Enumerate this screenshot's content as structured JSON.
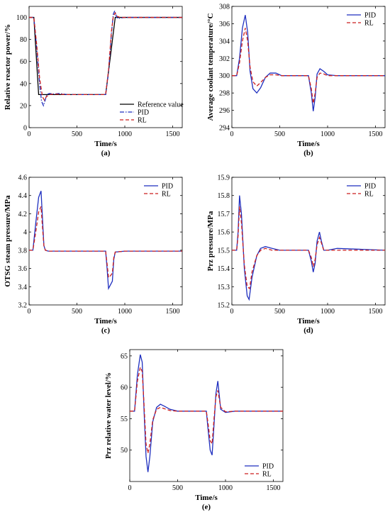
{
  "chart_data": [
    {
      "id": "a",
      "type": "line",
      "panel_label": "(a)",
      "xlabel": "Time/s",
      "ylabel": "Relative reactor power/%",
      "xlim": [
        0,
        1600
      ],
      "ylim": [
        0,
        110
      ],
      "xticks": [
        0,
        500,
        1000,
        1500
      ],
      "yticks": [
        0,
        20,
        40,
        60,
        80,
        100
      ],
      "legend": "bottom-right",
      "series": [
        {
          "name": "Reference value",
          "color": "#000000",
          "dash": "solid",
          "x": [
            0,
            50,
            100,
            800,
            850,
            900,
            1600
          ],
          "y": [
            100,
            100,
            30,
            30,
            65,
            100,
            100
          ]
        },
        {
          "name": "PID",
          "color": "#1f2fbf",
          "dash": "dashdot",
          "x": [
            0,
            50,
            80,
            110,
            130,
            150,
            165,
            185,
            210,
            260,
            320,
            400,
            800,
            830,
            860,
            880,
            895,
            905,
            915,
            930,
            960,
            1000,
            1600
          ],
          "y": [
            100,
            100,
            72,
            40,
            24,
            20,
            24,
            30,
            31,
            30.5,
            31,
            30,
            30,
            50,
            85,
            103,
            106,
            103,
            100,
            99,
            99.5,
            100,
            100
          ]
        },
        {
          "name": "RL",
          "color": "#cc1f1f",
          "dash": "dashed",
          "x": [
            0,
            50,
            80,
            110,
            140,
            160,
            180,
            210,
            260,
            400,
            800,
            830,
            860,
            880,
            900,
            920,
            950,
            1000,
            1600
          ],
          "y": [
            100,
            100,
            75,
            45,
            28,
            25,
            28,
            30,
            30.5,
            30,
            30,
            52,
            87,
            101,
            104,
            101,
            100,
            100,
            100
          ]
        }
      ]
    },
    {
      "id": "b",
      "type": "line",
      "panel_label": "(b)",
      "xlabel": "Time/s",
      "ylabel": "Average coolant temperature/°C",
      "xlim": [
        0,
        1600
      ],
      "ylim": [
        294,
        308
      ],
      "xticks": [
        0,
        500,
        1000,
        1500
      ],
      "yticks": [
        294,
        296,
        298,
        300,
        302,
        304,
        306,
        308
      ],
      "legend": "top-right",
      "series": [
        {
          "name": "PID",
          "color": "#1f2fbf",
          "dash": "solid",
          "x": [
            0,
            50,
            80,
            110,
            140,
            165,
            190,
            220,
            260,
            300,
            350,
            400,
            460,
            520,
            600,
            800,
            830,
            850,
            870,
            890,
            920,
            960,
            1000,
            1100,
            1600
          ],
          "y": [
            300,
            300,
            302,
            305.5,
            307,
            305,
            300.5,
            298.5,
            298,
            298.6,
            299.8,
            300.3,
            300.3,
            300,
            300,
            300,
            298,
            295.9,
            297.5,
            300.2,
            300.8,
            300.5,
            300.1,
            300,
            300
          ]
        },
        {
          "name": "RL",
          "color": "#cc1f1f",
          "dash": "dashed",
          "x": [
            0,
            50,
            80,
            110,
            140,
            165,
            190,
            220,
            260,
            300,
            350,
            400,
            460,
            520,
            600,
            800,
            830,
            850,
            870,
            890,
            920,
            960,
            1000,
            1100,
            1600
          ],
          "y": [
            300,
            300,
            301.5,
            304,
            305.5,
            304,
            301,
            299.3,
            298.8,
            299.2,
            299.8,
            300.1,
            300.1,
            300,
            300,
            300,
            298.5,
            296.8,
            298,
            299.8,
            300.3,
            300.2,
            300,
            300,
            300
          ]
        }
      ]
    },
    {
      "id": "c",
      "type": "line",
      "panel_label": "(c)",
      "xlabel": "Time/s",
      "ylabel": "OTSG steam pressure/MPa",
      "xlim": [
        0,
        1600
      ],
      "ylim": [
        3.2,
        4.6
      ],
      "xticks": [
        0,
        500,
        1000,
        1500
      ],
      "yticks": [
        3.2,
        3.4,
        3.6,
        3.8,
        4.0,
        4.2,
        4.4,
        4.6
      ],
      "ytick_labels": [
        "3.2",
        "3.4",
        "3.6",
        "3.8",
        "4",
        "4.2",
        "4.4",
        "4.6"
      ],
      "legend": "top-right",
      "series": [
        {
          "name": "PID",
          "color": "#1f2fbf",
          "dash": "solid",
          "x": [
            0,
            40,
            70,
            100,
            125,
            140,
            155,
            170,
            200,
            800,
            815,
            830,
            850,
            870,
            885,
            900,
            1000,
            1600
          ],
          "y": [
            3.8,
            3.8,
            4.1,
            4.38,
            4.45,
            4.15,
            3.85,
            3.8,
            3.79,
            3.79,
            3.6,
            3.38,
            3.42,
            3.46,
            3.7,
            3.78,
            3.79,
            3.79
          ]
        },
        {
          "name": "RL",
          "color": "#cc1f1f",
          "dash": "dashed",
          "x": [
            0,
            40,
            70,
            100,
            125,
            140,
            155,
            170,
            200,
            800,
            815,
            830,
            850,
            870,
            885,
            900,
            1000,
            1600
          ],
          "y": [
            3.8,
            3.8,
            4.0,
            4.22,
            4.28,
            4.05,
            3.85,
            3.8,
            3.79,
            3.79,
            3.65,
            3.5,
            3.52,
            3.55,
            3.72,
            3.78,
            3.79,
            3.79
          ]
        }
      ]
    },
    {
      "id": "d",
      "type": "line",
      "panel_label": "(d)",
      "xlabel": "Time/s",
      "ylabel": "Prz pressure/MPa",
      "xlim": [
        0,
        1600
      ],
      "ylim": [
        15.2,
        15.9
      ],
      "xticks": [
        0,
        500,
        1000,
        1500
      ],
      "yticks": [
        15.2,
        15.3,
        15.4,
        15.5,
        15.6,
        15.7,
        15.8,
        15.9
      ],
      "legend": "top-right",
      "series": [
        {
          "name": "PID",
          "color": "#1f2fbf",
          "dash": "solid",
          "x": [
            0,
            50,
            65,
            80,
            100,
            130,
            160,
            180,
            210,
            260,
            300,
            350,
            420,
            500,
            800,
            830,
            850,
            870,
            890,
            915,
            935,
            960,
            1000,
            1100,
            1600
          ],
          "y": [
            15.5,
            15.5,
            15.6,
            15.8,
            15.7,
            15.4,
            15.25,
            15.23,
            15.35,
            15.47,
            15.51,
            15.52,
            15.51,
            15.5,
            15.5,
            15.44,
            15.38,
            15.43,
            15.55,
            15.6,
            15.55,
            15.5,
            15.5,
            15.51,
            15.5
          ]
        },
        {
          "name": "RL",
          "color": "#cc1f1f",
          "dash": "dashed",
          "x": [
            0,
            50,
            65,
            80,
            100,
            130,
            160,
            185,
            210,
            260,
            300,
            350,
            420,
            500,
            800,
            830,
            850,
            870,
            890,
            915,
            935,
            960,
            1000,
            1100,
            1600
          ],
          "y": [
            15.5,
            15.5,
            15.58,
            15.74,
            15.65,
            15.42,
            15.3,
            15.29,
            15.38,
            15.47,
            15.5,
            15.51,
            15.5,
            15.5,
            15.5,
            15.46,
            15.41,
            15.45,
            15.53,
            15.57,
            15.54,
            15.5,
            15.5,
            15.5,
            15.5
          ]
        }
      ]
    },
    {
      "id": "e",
      "type": "line",
      "panel_label": "(e)",
      "xlabel": "Time/s",
      "ylabel": "Prz relative water level/%",
      "xlim": [
        0,
        1600
      ],
      "ylim": [
        45,
        66
      ],
      "xticks": [
        0,
        500,
        1000,
        1500
      ],
      "yticks": [
        50,
        55,
        60,
        65
      ],
      "legend": "bottom-right",
      "series": [
        {
          "name": "PID",
          "color": "#1f2fbf",
          "dash": "solid",
          "x": [
            0,
            50,
            80,
            110,
            130,
            150,
            170,
            190,
            210,
            240,
            280,
            320,
            360,
            420,
            500,
            800,
            820,
            840,
            860,
            880,
            900,
            920,
            950,
            1000,
            1100,
            1600
          ],
          "y": [
            56.2,
            56.2,
            62,
            65.2,
            64,
            56,
            49,
            46.5,
            49,
            54.5,
            56.8,
            57.3,
            57,
            56.5,
            56.2,
            56.2,
            53,
            50,
            49.2,
            54,
            59,
            61,
            56.5,
            56,
            56.2,
            56.2
          ]
        },
        {
          "name": "RL",
          "color": "#cc1f1f",
          "dash": "dashed",
          "x": [
            0,
            50,
            80,
            110,
            130,
            150,
            170,
            190,
            210,
            240,
            280,
            320,
            360,
            420,
            500,
            800,
            820,
            840,
            860,
            880,
            900,
            920,
            950,
            1000,
            1100,
            1600
          ],
          "y": [
            56.2,
            56.2,
            61,
            63.2,
            62.5,
            57,
            51,
            49.5,
            51,
            54.8,
            56.5,
            56.8,
            56.6,
            56.3,
            56.2,
            56.2,
            54,
            51.5,
            51,
            55,
            58.5,
            59.5,
            56.8,
            56.1,
            56.2,
            56.2
          ]
        }
      ]
    }
  ]
}
